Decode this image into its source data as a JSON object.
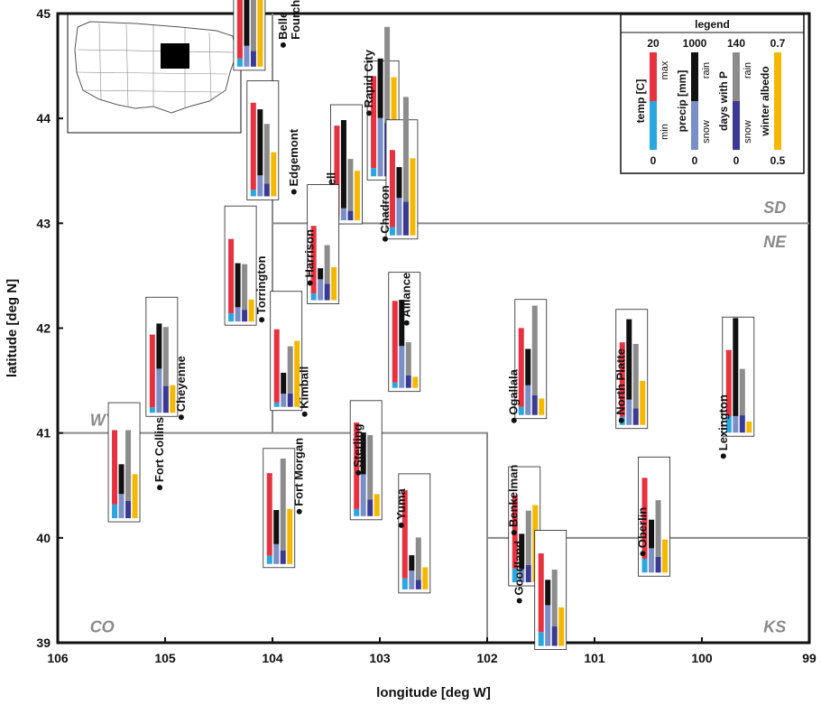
{
  "chart_data": {
    "type": "bar",
    "xlabel": "longitude [deg W]",
    "ylabel": "latitude [deg N]",
    "xlim": [
      106,
      99
    ],
    "ylim": [
      39,
      45
    ],
    "x_ticks": [
      "106",
      "105",
      "104",
      "103",
      "102",
      "101",
      "100",
      "99"
    ],
    "y_ticks": [
      "39",
      "40",
      "41",
      "42",
      "43",
      "44",
      "45"
    ],
    "x_tick_values": [
      106,
      105,
      104,
      103,
      102,
      101,
      100,
      99
    ],
    "y_tick_values": [
      39,
      40,
      41,
      42,
      43,
      44,
      45
    ],
    "grid": false,
    "state_labels": [
      {
        "text": "SD",
        "lon": 99.3,
        "lat": 43.15
      },
      {
        "text": "NE",
        "lon": 99.3,
        "lat": 42.82
      },
      {
        "text": "WY",
        "lon": 105.7,
        "lat": 41.12
      },
      {
        "text": "CO",
        "lon": 105.7,
        "lat": 39.15
      },
      {
        "text": "KS",
        "lon": 99.3,
        "lat": 39.15
      }
    ],
    "state_borders": [
      [
        [
          106,
          41
        ],
        [
          102,
          41
        ],
        [
          102,
          39
        ]
      ],
      [
        [
          104,
          41
        ],
        [
          104,
          45
        ]
      ],
      [
        [
          104,
          43
        ],
        [
          99,
          43
        ]
      ],
      [
        [
          102,
          40
        ],
        [
          99,
          40
        ]
      ]
    ],
    "legend": {
      "title": "legend",
      "placement": "top-right",
      "columns": [
        {
          "top": "20",
          "bottom": "0",
          "name": "temp [C]",
          "upper": "max",
          "lower": "min",
          "upper_color": "#e8313f",
          "lower_color": "#2aa6e0"
        },
        {
          "top": "1000",
          "bottom": "0",
          "name": "precip [mm]",
          "upper": "rain",
          "lower": "snow",
          "upper_color": "#111111",
          "lower_color": "#7a8ec8"
        },
        {
          "top": "140",
          "bottom": "0",
          "name": "days with P",
          "upper": "rain",
          "lower": "snow",
          "upper_color": "#8c8c8c",
          "lower_color": "#3a3a95"
        },
        {
          "top": "0.7",
          "bottom": "0.5",
          "name": "winter albedo",
          "upper": "",
          "lower": "",
          "upper_color": "#f5b800",
          "lower_color": "#f5b800"
        }
      ]
    },
    "series": [
      {
        "name": "max temp [C]",
        "color": "#e8313f",
        "max": 20
      },
      {
        "name": "min temp [C]",
        "color": "#2aa6e0",
        "max": 20
      },
      {
        "name": "rain [mm]",
        "color": "#111111",
        "max": 1000
      },
      {
        "name": "snow [mm]",
        "color": "#7a8ec8",
        "max": 1000
      },
      {
        "name": "days with rain",
        "color": "#8c8c8c",
        "max": 140
      },
      {
        "name": "days with snow",
        "color": "#3a3a95",
        "max": 140
      },
      {
        "name": "winter albedo",
        "color": "#f5b800",
        "min": 0.5,
        "max": 0.7
      }
    ],
    "stations": [
      {
        "name": "Belle\nFourche",
        "lon": 103.9,
        "lat": 44.7,
        "tmax": 18.0,
        "tmin": 1.5,
        "rain": 470,
        "snow": 190,
        "drain": 82,
        "dsnow": 20,
        "albedo": 0.63
      },
      {
        "name": "Rapid City",
        "lon": 103.1,
        "lat": 44.05,
        "tmax": 18.2,
        "tmin": 1.5,
        "rain": 540,
        "snow": 530,
        "drain": 122,
        "dsnow": 68,
        "albedo": 0.68
      },
      {
        "name": "Edgemont",
        "lon": 103.8,
        "lat": 43.3,
        "tmax": 17.0,
        "tmin": 1.2,
        "rain": 600,
        "snow": 190,
        "drain": 76,
        "dsnow": 16,
        "albedo": 0.58
      },
      {
        "name": "Newell",
        "lon": 103.45,
        "lat": 43.08,
        "tmax": 17.2,
        "tmin": 0.7,
        "rain": 800,
        "snow": 110,
        "drain": 66,
        "dsnow": 12,
        "albedo": 0.59
      },
      {
        "name": "Chadron",
        "lon": 102.95,
        "lat": 42.85,
        "tmax": 15.5,
        "tmin": 1.5,
        "rain": 280,
        "snow": 340,
        "drain": 133,
        "dsnow": 43,
        "albedo": 0.64
      },
      {
        "name": "Torrington",
        "lon": 104.1,
        "lat": 42.08,
        "tmax": 15.0,
        "tmin": 1.5,
        "rain": 400,
        "snow": 130,
        "drain": 58,
        "dsnow": 15,
        "albedo": 0.54
      },
      {
        "name": "Harrison",
        "lon": 103.65,
        "lat": 42.43,
        "tmax": 13.5,
        "tmin": 1.2,
        "rain": 100,
        "snow": 190,
        "drain": 49,
        "dsnow": 21,
        "albedo": 0.56
      },
      {
        "name": "Cheyenne",
        "lon": 104.85,
        "lat": 41.15,
        "tmax": 14.2,
        "tmin": 1.0,
        "rain": 410,
        "snow": 400,
        "drain": 75,
        "dsnow": 34,
        "albedo": 0.55
      },
      {
        "name": "Kimball",
        "lon": 103.7,
        "lat": 41.18,
        "tmax": 14.1,
        "tmin": 0.8,
        "rain": 190,
        "snow": 120,
        "drain": 60,
        "dsnow": 17,
        "albedo": 0.62
      },
      {
        "name": "Alliance",
        "lon": 102.75,
        "lat": 42.05,
        "tmax": 15.8,
        "tmin": 1.0,
        "rain": 420,
        "snow": 380,
        "drain": 42,
        "dsnow": 16,
        "albedo": 0.52
      },
      {
        "name": "Ogallala",
        "lon": 101.75,
        "lat": 41.12,
        "tmax": 15.8,
        "tmin": 1.5,
        "rain": 330,
        "snow": 270,
        "drain": 114,
        "dsnow": 25,
        "albedo": 0.53
      },
      {
        "name": "North Platte",
        "lon": 100.75,
        "lat": 41.12,
        "tmax": 15.0,
        "tmin": 1.5,
        "rain": 730,
        "snow": 230,
        "drain": 82,
        "dsnow": 21,
        "albedo": 0.58
      },
      {
        "name": "Lexington",
        "lon": 99.8,
        "lat": 40.78,
        "tmax": 15.0,
        "tmin": 3.0,
        "rain": 890,
        "snow": 150,
        "drain": 59,
        "dsnow": 22,
        "albedo": 0.52
      },
      {
        "name": "Fort Collins",
        "lon": 105.05,
        "lat": 40.48,
        "tmax": 16.0,
        "tmin": 2.5,
        "rain": 270,
        "snow": 220,
        "drain": 90,
        "dsnow": 22,
        "albedo": 0.58
      },
      {
        "name": "Fort Morgan",
        "lon": 103.75,
        "lat": 40.25,
        "tmax": 16.5,
        "tmin": 1.5,
        "rain": 310,
        "snow": 180,
        "drain": 117,
        "dsnow": 17,
        "albedo": 0.6
      },
      {
        "name": "Sterling",
        "lon": 103.2,
        "lat": 40.62,
        "tmax": 17.0,
        "tmin": 1.3,
        "rain": 380,
        "snow": 380,
        "drain": 82,
        "dsnow": 21,
        "albedo": 0.54
      },
      {
        "name": "Yuma",
        "lon": 102.8,
        "lat": 40.12,
        "tmax": 18.0,
        "tmin": 2.0,
        "rain": 140,
        "snow": 170,
        "drain": 54,
        "dsnow": 12,
        "albedo": 0.54
      },
      {
        "name": "Benkelman",
        "lon": 101.75,
        "lat": 40.05,
        "tmax": 15.8,
        "tmin": 2.5,
        "rain": 320,
        "snow": 120,
        "drain": 69,
        "dsnow": 22,
        "albedo": 0.64
      },
      {
        "name": "Goodland",
        "lon": 101.7,
        "lat": 39.4,
        "tmax": 16.8,
        "tmin": 2.5,
        "rain": 230,
        "snow": 370,
        "drain": 72,
        "dsnow": 25,
        "albedo": 0.57
      },
      {
        "name": "Oberlin",
        "lon": 100.55,
        "lat": 39.85,
        "tmax": 17.2,
        "tmin": 2.5,
        "rain": 260,
        "snow": 220,
        "drain": 72,
        "dsnow": 20,
        "albedo": 0.56
      }
    ]
  }
}
